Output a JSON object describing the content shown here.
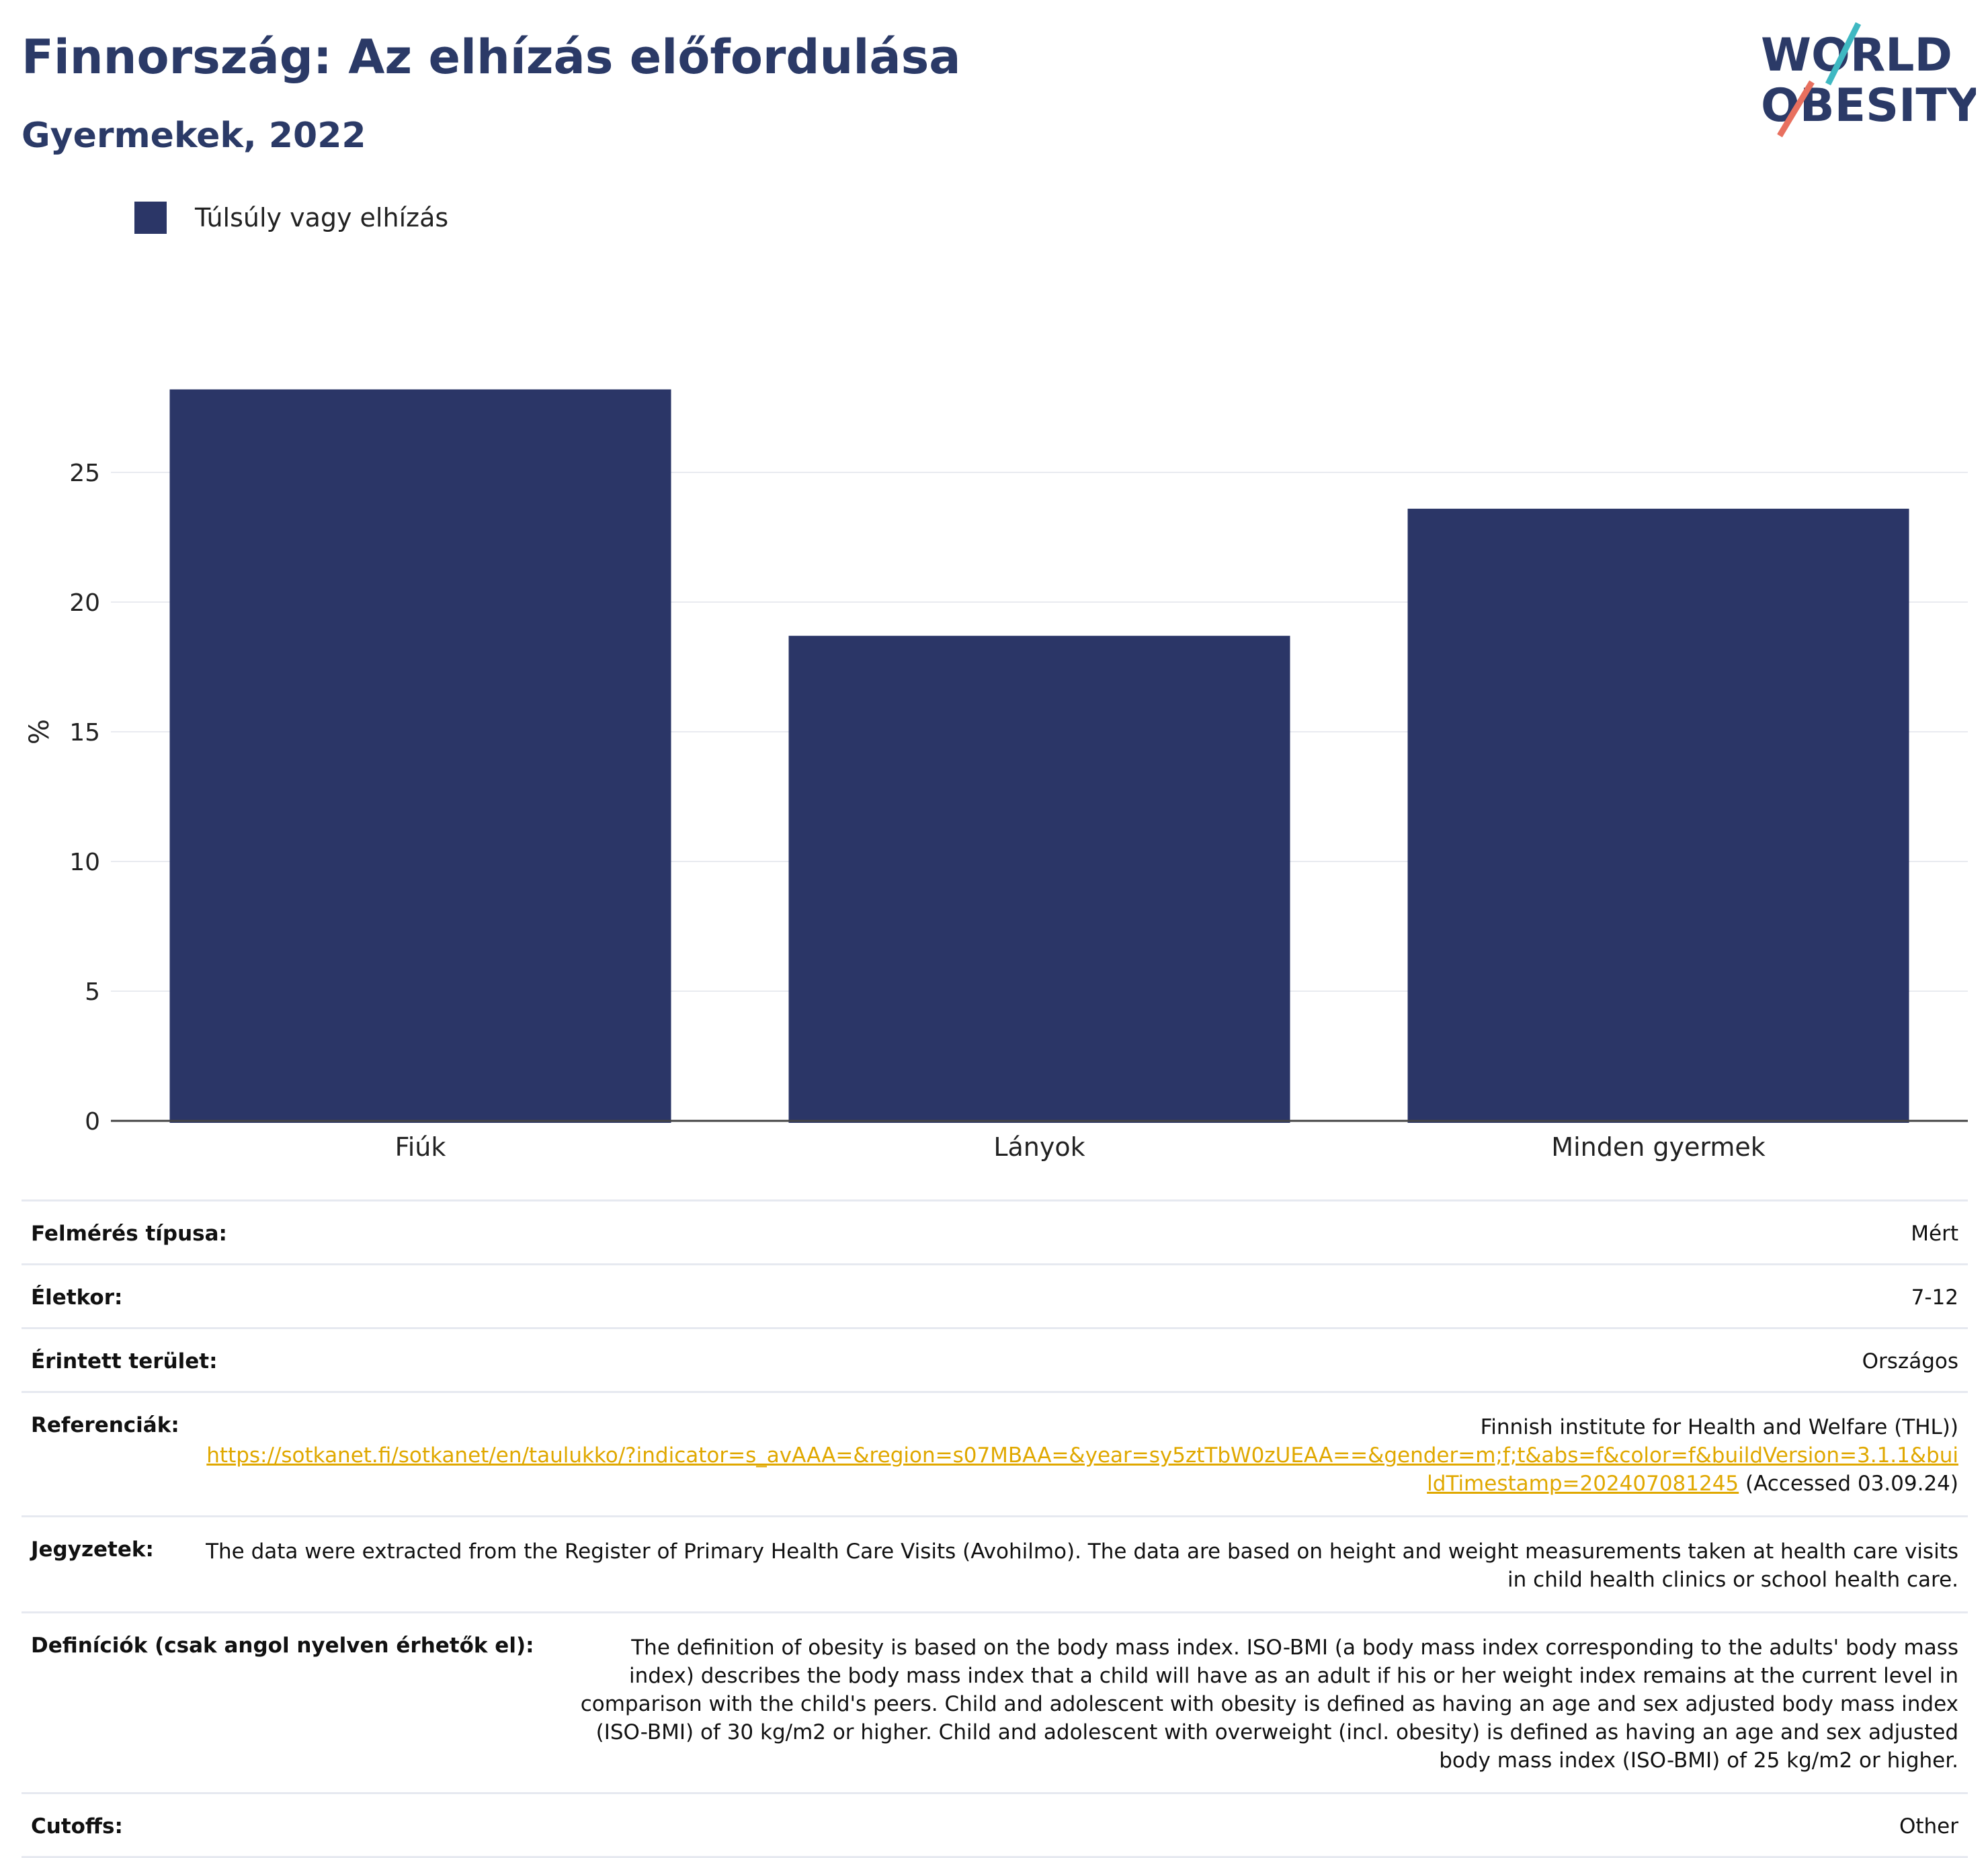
{
  "header": {
    "title": "Finnország: Az elhízás előfordulása",
    "subtitle": "Gyermekek, 2022",
    "logo_line1": "WORLD",
    "logo_line2": "OBESITY"
  },
  "legend": {
    "label": "Túlsúly vagy elhízás",
    "color": "#2b3667"
  },
  "chart_data": {
    "type": "bar",
    "categories": [
      "Fiúk",
      "Lányok",
      "Minden gyermek"
    ],
    "series": [
      {
        "name": "Túlsúly vagy elhízás",
        "values": [
          28.2,
          18.7,
          23.6
        ]
      }
    ],
    "ylabel": "%",
    "xlabel": "",
    "ylim": [
      0,
      30
    ],
    "yticks": [
      0,
      5,
      10,
      15,
      20,
      25
    ],
    "grid": true,
    "legend_position": "top-left",
    "bar_color": "#2b3667"
  },
  "meta": {
    "survey_type": {
      "label": "Felmérés típusa:",
      "value": "Mért"
    },
    "age": {
      "label": "Életkor:",
      "value": "7-12"
    },
    "area": {
      "label": "Érintett terület:",
      "value": "Országos"
    },
    "references": {
      "label": "Referenciák:",
      "source": "Finnish institute for Health and Welfare (THL))",
      "url": "https://sotkanet.fi/sotkanet/en/taulukko/?indicator=s_avAAA=&region=s07MBAA=&year=sy5ztTbW0zUEAA==&gender=m;f;t&abs=f&color=f&buildVersion=3.1.1&buildTimestamp=202407081245",
      "accessed": " (Accessed 03.09.24)"
    },
    "notes": {
      "label": "Jegyzetek:",
      "value": "The data were extracted from the Register of Primary Health Care Visits (Avohilmo). The data are based on height and weight measurements taken at health care visits in child health clinics or school health care."
    },
    "definitions": {
      "label": "Definíciók (csak angol nyelven érhetők el):",
      "value": "The definition of obesity is based on the body mass index. ISO-BMI (a body mass index corresponding to the adults' body mass index) describes the body mass index that a child will have as an adult if his or her weight index remains at the current level in comparison with the child's peers. Child and adolescent with obesity is defined as having an age and sex adjusted body mass index (ISO-BMI) of 30 kg/m2 or higher. Child and adolescent with overweight (incl. obesity) is defined as having an age and sex adjusted body mass index (ISO-BMI) of 25 kg/m2 or higher."
    },
    "cutoffs": {
      "label": "Cutoffs:",
      "value": "Other"
    }
  },
  "colors": {
    "brand_navy": "#2b3a67",
    "logo_teal": "#3fb8c2",
    "logo_coral": "#e8705f",
    "link": "#e0a800"
  }
}
